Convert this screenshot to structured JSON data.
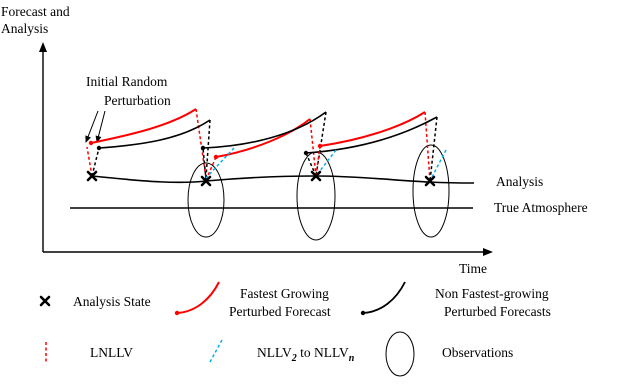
{
  "diagram": {
    "y_axis_label_line1": "Forecast and",
    "y_axis_label_line2": "Analysis",
    "x_axis_label": "Time",
    "annotation_line1": "Initial Random",
    "annotation_line2": "Perturbation",
    "analysis_label": "Analysis",
    "true_atmosphere_label": "True Atmosphere"
  },
  "legend": {
    "analysis_state": "Analysis State",
    "fastest_line1": "Fastest Growing",
    "fastest_line2": "Perturbed Forecast",
    "nonfastest_line1": "Non Fastest-growing",
    "nonfastest_line2": "Perturbed Forecasts",
    "lnllv": "LNLLV",
    "nllv_prefix": "NLLV",
    "nllv_sub_2": "2",
    "nllv_to": " to NLLV",
    "nllv_sub_n": "n",
    "observations": "Observations"
  },
  "colors": {
    "fastest": "#ff0000",
    "nonfastest": "#000000",
    "lnllv": "#ff0000",
    "nllv": "#00b0f0"
  }
}
